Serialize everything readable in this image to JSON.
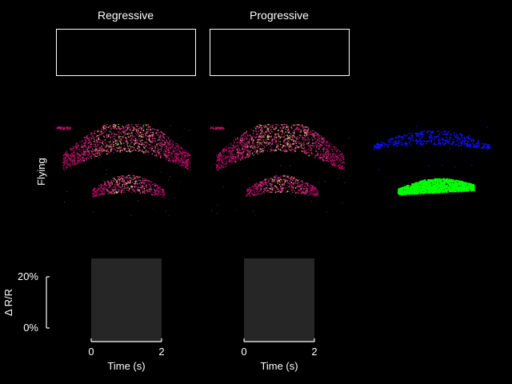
{
  "columns": [
    {
      "title": "Regressive"
    },
    {
      "title": "Progressive"
    }
  ],
  "rows": {
    "imaging_label": "Flying"
  },
  "colors": {
    "background": "#000000",
    "foreground": "#ffffff",
    "fluorescence_low": "#c0106a",
    "fluorescence_high": "#ffe08a",
    "roi_upper": "#1010ff",
    "roi_lower": "#00ff00",
    "stimulus_shading": "#262626"
  },
  "scale_bar": {
    "ylabel": "Δ R/R",
    "tick_labels": [
      "20%",
      "0%"
    ],
    "range_percent": [
      0,
      20
    ]
  },
  "chart_data": [
    {
      "type": "line",
      "panel": "Regressive",
      "title": "",
      "xlabel": "Time (s)",
      "ylabel": "Δ R/R",
      "xlim": [
        0,
        2
      ],
      "x_ticks": [
        "0",
        "2"
      ],
      "ylim": [
        0,
        20
      ],
      "y_unit": "%",
      "stimulus_interval": [
        0,
        2
      ],
      "series": []
    },
    {
      "type": "line",
      "panel": "Progressive",
      "title": "",
      "xlabel": "Time (s)",
      "ylabel": "Δ R/R",
      "xlim": [
        0,
        2
      ],
      "x_ticks": [
        "0",
        "2"
      ],
      "ylim": [
        0,
        20
      ],
      "y_unit": "%",
      "stimulus_interval": [
        0,
        2
      ],
      "series": []
    }
  ]
}
